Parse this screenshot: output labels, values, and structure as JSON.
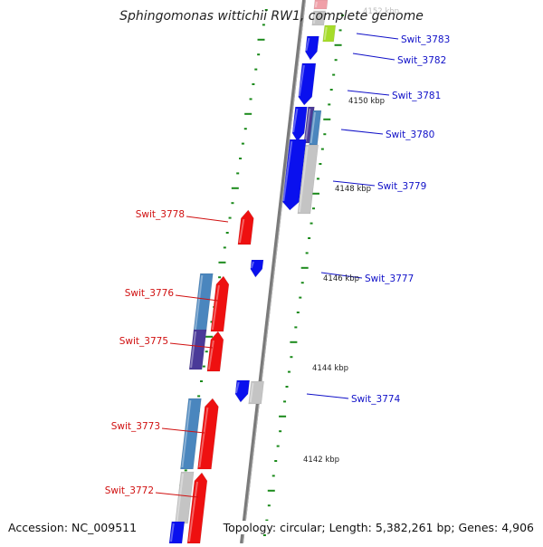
{
  "title": "Sphingomonas wittichii RW1, complete genome",
  "accession": "Accession: NC_009511",
  "summary": "Topology: circular; Length: 5,382,261 bp; Genes: 4,906",
  "colors": {
    "forward_gene": "#0a10ee",
    "reverse_gene": "#ee1010",
    "steelblue_gene": "#4a86be",
    "purple_gene": "#4a3a98",
    "gray_gene": "#c4c4c4",
    "lime_gene": "#a6dc2a",
    "pink_gene": "#f0a0a8",
    "backbone": "#7a7a7a",
    "tick": "#1b8a1b",
    "forward_label": "#1010c8",
    "reverse_label": "#d01010"
  },
  "scale_labels": [
    "4152 kbp",
    "4150 kbp",
    "4148 kbp",
    "4146 kbp",
    "4144 kbp",
    "4142 kbp"
  ],
  "forward_genes": [
    "Swit_3783",
    "Swit_3782",
    "Swit_3781",
    "Swit_3780",
    "Swit_3779",
    "Swit_3777",
    "Swit_3774"
  ],
  "reverse_genes": [
    "Swit_3778",
    "Swit_3776",
    "Swit_3775",
    "Swit_3773",
    "Swit_3772"
  ]
}
